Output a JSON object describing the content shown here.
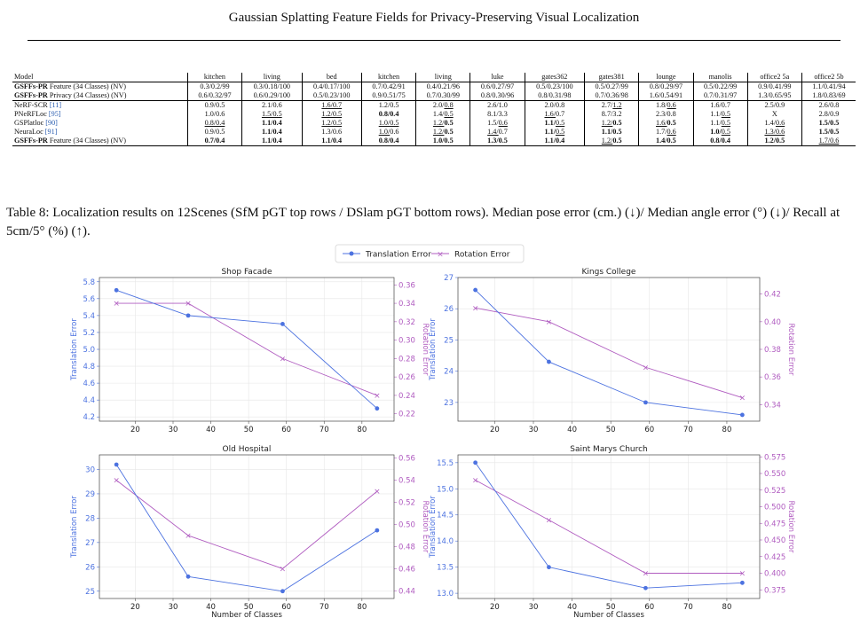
{
  "running_title": "Gaussian Splatting Feature Fields for Privacy-Preserving Visual Localization",
  "table": {
    "header": [
      "Model",
      "kitchen",
      "living",
      "bed",
      "kitchen",
      "living",
      "luke",
      "gates362",
      "gates381",
      "lounge",
      "manolis",
      "office2 5a",
      "office2 5b"
    ],
    "rows": [
      {
        "model_bold": "GSFFs-PR",
        "model_rest": " Feature (34 Classes) (NV)",
        "cite": "",
        "cells": [
          [
            "0.3/0.2/99"
          ],
          [
            "0.3/0.18/100"
          ],
          [
            "0.4/0.17/100"
          ],
          [
            "0.7/0.42/91"
          ],
          [
            "0.4/0.21/96"
          ],
          [
            "0.6/0.27/97"
          ],
          [
            "0.5/0.23/100"
          ],
          [
            "0.5/0.27/99"
          ],
          [
            "0.8/0.29/97"
          ],
          [
            "0.5/0.22/99"
          ],
          [
            "0.9/0.41/99"
          ],
          [
            "1.1/0.41/94"
          ]
        ]
      },
      {
        "model_bold": "GSFFs-PR",
        "model_rest": " Privacy (34 Classes) (NV)",
        "cite": "",
        "cells": [
          [
            "0.6/0.32/97"
          ],
          [
            "0.6/0.29/100"
          ],
          [
            "0.5/0.23/100"
          ],
          [
            "0.9/0.51/75"
          ],
          [
            "0.7/0.30/99"
          ],
          [
            "0.8/0.30/96"
          ],
          [
            "0.8/0.31/98"
          ],
          [
            "0.7/0.36/98"
          ],
          [
            "1.6/0.54/91"
          ],
          [
            "0.7/0.31/97"
          ],
          [
            "1.3/0.65/95"
          ],
          [
            "1.8/0.83/69"
          ]
        ]
      },
      {
        "model_bold": "",
        "model_rest": "NeRF-SCR ",
        "cite": "[11]",
        "cells": [
          [
            "0.9/0.5"
          ],
          [
            "2.1/0.6"
          ],
          [
            "1.6/0.7",
            "u"
          ],
          [
            "1.2/0.5"
          ],
          [
            "2.0/",
            "",
            "0.8",
            "u"
          ],
          [
            "2.6/1.0"
          ],
          [
            "2.0/0.8"
          ],
          [
            "2.7/",
            "",
            "1.2",
            "u"
          ],
          [
            "1.8/",
            "",
            "0.6",
            "u"
          ],
          [
            "1.6/0.7"
          ],
          [
            "2.5/0.9"
          ],
          [
            "2.6/0.8"
          ]
        ]
      },
      {
        "model_bold": "",
        "model_rest": "PNeRFLoc ",
        "cite": "[95]",
        "cells": [
          [
            "1.0/0.6"
          ],
          [
            "1.5/0.5",
            "u"
          ],
          [
            "1.2/0.5",
            "u"
          ],
          [
            "0.8/0.4",
            "b"
          ],
          [
            "1.4/",
            "",
            "0.5",
            "u"
          ],
          [
            "8.1/3.3"
          ],
          [
            "1.6/",
            "u",
            "0.7",
            ""
          ],
          [
            "8.7/3.2"
          ],
          [
            "2.3/0.8"
          ],
          [
            "1.1/",
            "",
            "0.5",
            "u"
          ],
          [
            "X"
          ],
          [
            "2.8/0.9"
          ]
        ]
      },
      {
        "model_bold": "",
        "model_rest": "GSPlatloc ",
        "cite": "[90]",
        "cells": [
          [
            "0.8/0.4",
            "u"
          ],
          [
            "1.1/0.4",
            "b"
          ],
          [
            "1.2/0.5",
            "u"
          ],
          [
            "1.0/0.5",
            "u"
          ],
          [
            "1.2/",
            "u",
            "0.5",
            "b"
          ],
          [
            "1.5/",
            "",
            "0.6",
            "u"
          ],
          [
            "1.1/",
            "b",
            "0.5",
            "u"
          ],
          [
            "1.2/",
            "u",
            "0.5",
            "b"
          ],
          [
            "1.6/",
            "u",
            "0.5",
            "b"
          ],
          [
            "1.1/",
            "",
            "0.5",
            "u"
          ],
          [
            "1.4/",
            "",
            "0.6",
            "u"
          ],
          [
            "1.5/0.5",
            "b"
          ]
        ]
      },
      {
        "model_bold": "",
        "model_rest": "NeuraLoc ",
        "cite": "[91]",
        "cells": [
          [
            "0.9/0.5"
          ],
          [
            "1.1/0.4",
            "b"
          ],
          [
            "1.3/0.6"
          ],
          [
            "1.0/",
            "u",
            "0.6",
            ""
          ],
          [
            "1.2/",
            "u",
            "0.5",
            "b"
          ],
          [
            "1.4/",
            "u",
            "0.7",
            ""
          ],
          [
            "1.1/",
            "b",
            "0.5",
            "u"
          ],
          [
            "1.1/0.5",
            "b"
          ],
          [
            "1.7/",
            "",
            "0.6",
            "u"
          ],
          [
            "1.0/",
            "b",
            "0.5",
            "u"
          ],
          [
            "1.3/0.6",
            "u"
          ],
          [
            "1.5/0.5",
            "b"
          ]
        ]
      },
      {
        "model_bold": "GSFFs-PR",
        "model_rest": " Feature (34 Classes) (NV)",
        "cite": "",
        "cells": [
          [
            "0.7/0.4",
            "b"
          ],
          [
            "1.1/0.4",
            "b"
          ],
          [
            "1.1/0.4",
            "b"
          ],
          [
            "0.8/0.4",
            "b"
          ],
          [
            "1.0/0.5",
            "b"
          ],
          [
            "1.3/0.5",
            "b"
          ],
          [
            "1.1/0.4",
            "b"
          ],
          [
            "1.2/",
            "u",
            "0.5",
            "b"
          ],
          [
            "1.4/0.5",
            "b"
          ],
          [
            "0.8/0.4",
            "b"
          ],
          [
            "1.2/0.5",
            "b"
          ],
          [
            "1.7/0.6",
            "u"
          ]
        ]
      }
    ]
  },
  "caption": "Table 8: Localization results on 12Scenes (SfM pGT top rows / DSlam pGT bottom rows). Median pose error (cm.) (↓)/ Median angle error (°) (↓)/ Recall at 5cm/5° (%) (↑).",
  "chart_data": [
    {
      "type": "line",
      "title": "Shop Facade",
      "xlabel": "",
      "ylabel": "Translation Error",
      "y2label": "Rotation Error",
      "x": [
        15,
        34,
        59,
        84
      ],
      "xlim": [
        10.5,
        88.5
      ],
      "xticks": [
        20,
        30,
        40,
        50,
        60,
        70,
        80
      ],
      "ylim": [
        4.15,
        5.85
      ],
      "yticks": [
        4.2,
        4.4,
        4.6,
        4.8,
        5.0,
        5.2,
        5.4,
        5.6,
        5.8
      ],
      "y2lim": [
        0.212,
        0.368
      ],
      "y2ticks": [
        0.22,
        0.24,
        0.26,
        0.28,
        0.3,
        0.32,
        0.34,
        0.36
      ],
      "series": [
        {
          "name": "Translation Error",
          "axis": "left",
          "values": [
            5.7,
            5.4,
            5.3,
            4.3
          ]
        },
        {
          "name": "Rotation Error",
          "axis": "right",
          "values": [
            0.34,
            0.34,
            0.28,
            0.24
          ]
        }
      ]
    },
    {
      "type": "line",
      "title": "Kings College",
      "xlabel": "",
      "ylabel": "Translation Error",
      "y2label": "Rotation Error",
      "x": [
        15,
        34,
        59,
        84
      ],
      "xlim": [
        10.5,
        88.5
      ],
      "xticks": [
        20,
        30,
        40,
        50,
        60,
        70,
        80
      ],
      "ylim": [
        22.4,
        27.0
      ],
      "yticks": [
        23,
        24,
        25,
        26,
        27
      ],
      "y2lim": [
        0.328,
        0.432
      ],
      "y2ticks": [
        0.34,
        0.36,
        0.38,
        0.4,
        0.42
      ],
      "series": [
        {
          "name": "Translation Error",
          "axis": "left",
          "values": [
            26.6,
            24.3,
            23.0,
            22.6
          ]
        },
        {
          "name": "Rotation Error",
          "axis": "right",
          "values": [
            0.41,
            0.4,
            0.367,
            0.345
          ]
        }
      ]
    },
    {
      "type": "line",
      "title": "Old Hospital",
      "xlabel": "Number of Classes",
      "ylabel": "Translation Error",
      "y2label": "Rotation Error",
      "x": [
        15,
        34,
        59,
        84
      ],
      "xlim": [
        10.5,
        88.5
      ],
      "xticks": [
        20,
        30,
        40,
        50,
        60,
        70,
        80
      ],
      "ylim": [
        24.7,
        30.6
      ],
      "yticks": [
        25,
        26,
        27,
        28,
        29,
        30
      ],
      "y2lim": [
        0.433,
        0.563
      ],
      "y2ticks": [
        0.44,
        0.46,
        0.48,
        0.5,
        0.52,
        0.54,
        0.56
      ],
      "series": [
        {
          "name": "Translation Error",
          "axis": "left",
          "values": [
            30.2,
            25.6,
            25.0,
            27.5
          ]
        },
        {
          "name": "Rotation Error",
          "axis": "right",
          "values": [
            0.54,
            0.49,
            0.46,
            0.53
          ]
        }
      ]
    },
    {
      "type": "line",
      "title": "Saint Marys Church",
      "xlabel": "Number of Classes",
      "ylabel": "Translation Error",
      "y2label": "Rotation Error",
      "x": [
        15,
        34,
        59,
        84
      ],
      "xlim": [
        10.5,
        88.5
      ],
      "xticks": [
        20,
        30,
        40,
        50,
        60,
        70,
        80
      ],
      "ylim": [
        12.9,
        15.65
      ],
      "yticks": [
        13.0,
        13.5,
        14.0,
        14.5,
        15.0,
        15.5
      ],
      "y2lim": [
        0.362,
        0.578
      ],
      "y2ticks": [
        0.375,
        0.4,
        0.425,
        0.45,
        0.475,
        0.5,
        0.525,
        0.55,
        0.575
      ],
      "series": [
        {
          "name": "Translation Error",
          "axis": "left",
          "values": [
            15.5,
            13.5,
            13.1,
            13.2
          ]
        },
        {
          "name": "Rotation Error",
          "axis": "right",
          "values": [
            0.54,
            0.48,
            0.4,
            0.4
          ]
        }
      ]
    }
  ],
  "legend": {
    "placement": "top-center",
    "items": [
      "Translation Error",
      "Rotation Error"
    ]
  },
  "colors": {
    "translation": "#4c72e0",
    "rotation": "#b05cc0",
    "grid": "#e6e6e6",
    "axis": "#555555"
  }
}
